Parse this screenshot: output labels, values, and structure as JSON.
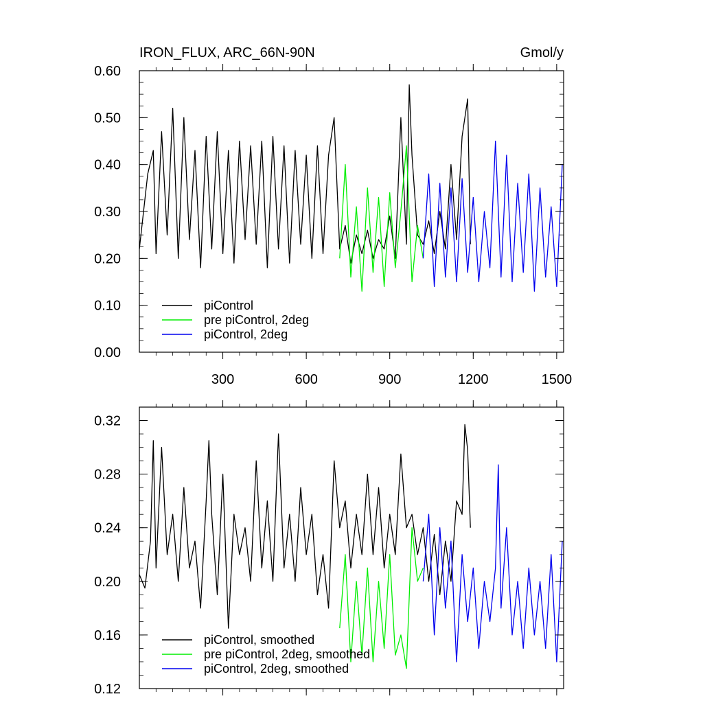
{
  "chart_data": [
    {
      "type": "line",
      "title": "IRON_FLUX, ARC_66N-90N",
      "units": "Gmol/y",
      "xlabel": "",
      "ylabel": "",
      "xlim": [
        0,
        1525
      ],
      "ylim": [
        0,
        0.6
      ],
      "xticks": [
        300,
        600,
        900,
        1200,
        1500
      ],
      "xtick_labels": [
        "300",
        "600",
        "900",
        "1200",
        "1500"
      ],
      "yticks": [
        0,
        0.1,
        0.2,
        0.3,
        0.4,
        0.5,
        0.6
      ],
      "ytick_labels": [
        "0.00",
        "0.10",
        "0.20",
        "0.30",
        "0.40",
        "0.50",
        "0.60"
      ],
      "grid": false,
      "legend_position": "bottom-left",
      "series": [
        {
          "name": "piControl",
          "color": "#000000",
          "x": [
            0,
            30,
            50,
            60,
            80,
            100,
            120,
            140,
            160,
            180,
            200,
            220,
            240,
            260,
            280,
            300,
            320,
            340,
            360,
            380,
            400,
            420,
            440,
            460,
            480,
            500,
            520,
            540,
            560,
            580,
            600,
            620,
            640,
            660,
            680,
            700,
            720,
            740,
            760,
            780,
            800,
            820,
            840,
            860,
            880,
            900,
            920,
            940,
            960,
            970,
            980,
            1000,
            1020,
            1040,
            1060,
            1080,
            1100,
            1120,
            1140,
            1160,
            1180,
            1190
          ],
          "y": [
            0.22,
            0.38,
            0.43,
            0.21,
            0.47,
            0.25,
            0.52,
            0.2,
            0.5,
            0.24,
            0.43,
            0.18,
            0.46,
            0.22,
            0.47,
            0.21,
            0.43,
            0.19,
            0.45,
            0.24,
            0.44,
            0.23,
            0.45,
            0.18,
            0.46,
            0.22,
            0.44,
            0.19,
            0.43,
            0.23,
            0.42,
            0.2,
            0.44,
            0.21,
            0.42,
            0.5,
            0.22,
            0.27,
            0.19,
            0.25,
            0.21,
            0.26,
            0.2,
            0.24,
            0.22,
            0.29,
            0.2,
            0.5,
            0.23,
            0.57,
            0.42,
            0.25,
            0.23,
            0.28,
            0.21,
            0.3,
            0.22,
            0.4,
            0.24,
            0.46,
            0.54,
            0.23
          ]
        },
        {
          "name": "pre piControl, 2deg",
          "color": "#00ee00",
          "x": [
            720,
            740,
            760,
            780,
            800,
            820,
            840,
            860,
            880,
            900,
            920,
            940,
            960,
            980,
            1000,
            1020
          ],
          "y": [
            0.2,
            0.4,
            0.16,
            0.31,
            0.13,
            0.35,
            0.17,
            0.33,
            0.14,
            0.34,
            0.18,
            0.3,
            0.44,
            0.15,
            0.27,
            0.2
          ]
        },
        {
          "name": "piControl, 2deg",
          "color": "#0000ee",
          "x": [
            1020,
            1040,
            1060,
            1080,
            1100,
            1120,
            1140,
            1160,
            1180,
            1200,
            1220,
            1240,
            1260,
            1280,
            1300,
            1320,
            1340,
            1360,
            1380,
            1400,
            1420,
            1440,
            1460,
            1480,
            1500,
            1520
          ],
          "y": [
            0.2,
            0.38,
            0.14,
            0.36,
            0.16,
            0.35,
            0.15,
            0.37,
            0.17,
            0.33,
            0.15,
            0.3,
            0.18,
            0.45,
            0.16,
            0.42,
            0.15,
            0.36,
            0.17,
            0.38,
            0.13,
            0.35,
            0.16,
            0.31,
            0.14,
            0.4
          ]
        }
      ]
    },
    {
      "type": "line",
      "title": "",
      "xlabel": "",
      "ylabel": "",
      "xlim": [
        0,
        1525
      ],
      "ylim": [
        0.12,
        0.33
      ],
      "xticks": [
        300,
        600,
        900,
        1200,
        1500
      ],
      "yticks": [
        0.12,
        0.16,
        0.2,
        0.24,
        0.28,
        0.32
      ],
      "ytick_labels": [
        "0.12",
        "0.16",
        "0.20",
        "0.24",
        "0.28",
        "0.32"
      ],
      "grid": false,
      "legend_position": "bottom-left",
      "series": [
        {
          "name": "piControl, smoothed",
          "color": "#000000",
          "x": [
            0,
            20,
            40,
            50,
            60,
            80,
            100,
            120,
            140,
            160,
            180,
            200,
            220,
            240,
            250,
            260,
            280,
            300,
            320,
            340,
            360,
            380,
            400,
            420,
            440,
            460,
            480,
            500,
            520,
            540,
            560,
            580,
            600,
            620,
            640,
            660,
            680,
            700,
            720,
            740,
            760,
            780,
            800,
            820,
            840,
            860,
            880,
            900,
            920,
            940,
            960,
            980,
            1000,
            1020,
            1040,
            1060,
            1080,
            1100,
            1120,
            1140,
            1160,
            1170,
            1180,
            1190
          ],
          "y": [
            0.205,
            0.195,
            0.23,
            0.305,
            0.21,
            0.3,
            0.22,
            0.25,
            0.2,
            0.27,
            0.21,
            0.23,
            0.18,
            0.26,
            0.305,
            0.25,
            0.19,
            0.28,
            0.165,
            0.25,
            0.22,
            0.24,
            0.2,
            0.29,
            0.21,
            0.26,
            0.2,
            0.31,
            0.21,
            0.25,
            0.2,
            0.27,
            0.22,
            0.25,
            0.19,
            0.22,
            0.18,
            0.29,
            0.24,
            0.26,
            0.21,
            0.25,
            0.22,
            0.28,
            0.22,
            0.27,
            0.21,
            0.25,
            0.22,
            0.295,
            0.24,
            0.25,
            0.22,
            0.24,
            0.2,
            0.235,
            0.19,
            0.23,
            0.2,
            0.26,
            0.25,
            0.317,
            0.298,
            0.24
          ]
        },
        {
          "name": "pre piControl, 2deg, smoothed",
          "color": "#00ee00",
          "x": [
            720,
            740,
            760,
            780,
            800,
            820,
            840,
            860,
            880,
            900,
            920,
            940,
            960,
            980,
            1000,
            1020
          ],
          "y": [
            0.165,
            0.22,
            0.14,
            0.2,
            0.145,
            0.21,
            0.14,
            0.2,
            0.15,
            0.22,
            0.145,
            0.16,
            0.135,
            0.24,
            0.2,
            0.21
          ]
        },
        {
          "name": "piControl, 2deg, smoothed",
          "color": "#0000ee",
          "x": [
            1020,
            1040,
            1060,
            1080,
            1100,
            1120,
            1140,
            1160,
            1180,
            1200,
            1220,
            1240,
            1260,
            1280,
            1290,
            1300,
            1320,
            1340,
            1360,
            1380,
            1400,
            1420,
            1440,
            1460,
            1480,
            1500,
            1520
          ],
          "y": [
            0.2,
            0.25,
            0.16,
            0.24,
            0.18,
            0.23,
            0.14,
            0.22,
            0.17,
            0.21,
            0.15,
            0.2,
            0.17,
            0.21,
            0.287,
            0.18,
            0.24,
            0.16,
            0.2,
            0.15,
            0.21,
            0.16,
            0.2,
            0.15,
            0.22,
            0.14,
            0.23
          ]
        }
      ]
    }
  ]
}
